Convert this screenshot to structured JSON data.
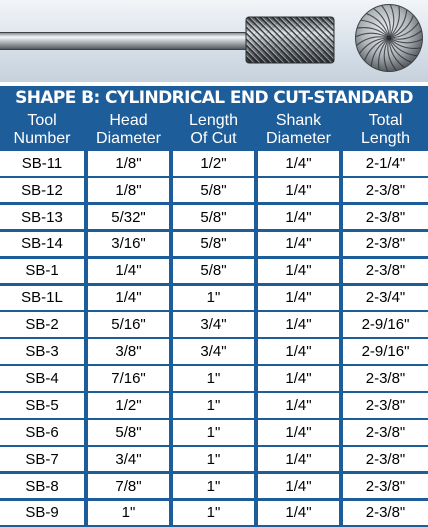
{
  "table": {
    "title": "SHAPE B: CYLINDRICAL END CUT-STANDARD",
    "columns": [
      {
        "line1": "Tool",
        "line2": "Number"
      },
      {
        "line1": "Head",
        "line2": "Diameter"
      },
      {
        "line1": "Length",
        "line2": "Of Cut"
      },
      {
        "line1": "Shank",
        "line2": "Diameter"
      },
      {
        "line1": "Total",
        "line2": "Length"
      }
    ],
    "rows": [
      [
        "SB-11",
        "1/8\"",
        "1/2\"",
        "1/4\"",
        "2-1/4\""
      ],
      [
        "SB-12",
        "1/8\"",
        "5/8\"",
        "1/4\"",
        "2-3/8\""
      ],
      [
        "SB-13",
        "5/32\"",
        "5/8\"",
        "1/4\"",
        "2-3/8\""
      ],
      [
        "SB-14",
        "3/16\"",
        "5/8\"",
        "1/4\"",
        "2-3/8\""
      ],
      [
        "SB-1",
        "1/4\"",
        "5/8\"",
        "1/4\"",
        "2-3/8\""
      ],
      [
        "SB-1L",
        "1/4\"",
        "1\"",
        "1/4\"",
        "2-3/4\""
      ],
      [
        "SB-2",
        "5/16\"",
        "3/4\"",
        "1/4\"",
        "2-9/16\""
      ],
      [
        "SB-3",
        "3/8\"",
        "3/4\"",
        "1/4\"",
        "2-9/16\""
      ],
      [
        "SB-4",
        "7/16\"",
        "1\"",
        "1/4\"",
        "2-3/8\""
      ],
      [
        "SB-5",
        "1/2\"",
        "1\"",
        "1/4\"",
        "2-3/8\""
      ],
      [
        "SB-6",
        "5/8\"",
        "1\"",
        "1/4\"",
        "2-3/8\""
      ],
      [
        "SB-7",
        "3/4\"",
        "1\"",
        "1/4\"",
        "2-3/8\""
      ],
      [
        "SB-8",
        "7/8\"",
        "1\"",
        "1/4\"",
        "2-3/8\""
      ],
      [
        "SB-9",
        "1\"",
        "1\"",
        "1/4\"",
        "2-3/8\""
      ]
    ]
  },
  "colors": {
    "header_bg": "#1d5d9a",
    "cell_bg": "#ffffff",
    "text_header": "#ffffff",
    "text_cell": "#000000"
  }
}
